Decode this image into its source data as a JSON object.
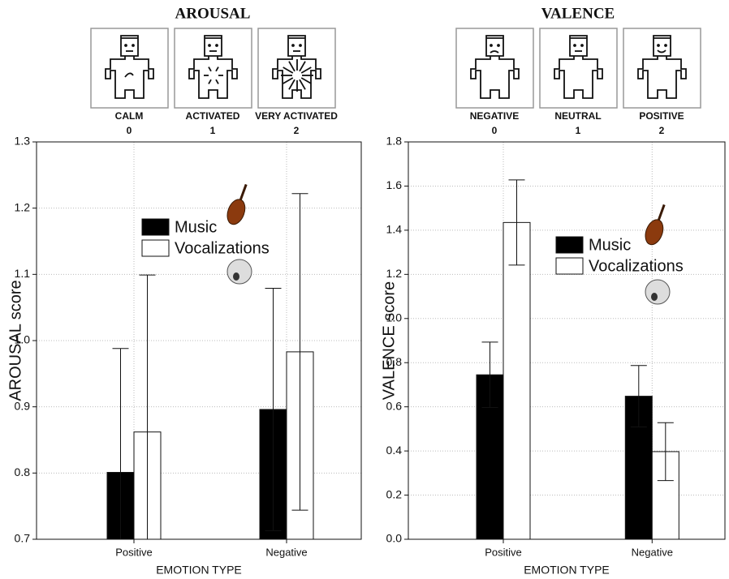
{
  "chart_data": [
    {
      "type": "bar",
      "title": "AROUSAL",
      "scale": [
        {
          "label": "CALM",
          "value": 0
        },
        {
          "label": "ACTIVATED",
          "value": 1
        },
        {
          "label": "VERY ACTIVATED",
          "value": 2
        }
      ],
      "y_label": "AROUSAL score",
      "x_label": "EMOTION TYPE",
      "categories": [
        "Positive",
        "Negative"
      ],
      "series": [
        {
          "name": "Music",
          "color": "#000000",
          "values": [
            0.801,
            0.896
          ],
          "errors": [
            0.187,
            0.183
          ]
        },
        {
          "name": "Vocalizations",
          "color": "#ffffff",
          "values": [
            0.862,
            0.983
          ],
          "errors": [
            0.237,
            0.239
          ]
        }
      ],
      "ylim": [
        0.7,
        1.3
      ],
      "yticks": [
        0.7,
        0.8,
        0.9,
        {
          "value": 1,
          "label": "1.0"
        },
        1.1,
        1.2,
        1.3
      ],
      "grid": true
    },
    {
      "type": "bar",
      "title": "VALENCE",
      "scale": [
        {
          "label": "NEGATIVE",
          "value": 0
        },
        {
          "label": "NEUTRAL",
          "value": 1
        },
        {
          "label": "POSITIVE",
          "value": 2
        }
      ],
      "y_label": "VALENCE score",
      "x_label": "EMOTION TYPE",
      "categories": [
        "Positive",
        "Negative"
      ],
      "series": [
        {
          "name": "Music",
          "color": "#000000",
          "values": [
            0.745,
            0.648
          ],
          "errors": [
            0.148,
            0.139
          ]
        },
        {
          "name": "Vocalizations",
          "color": "#ffffff",
          "values": [
            1.435,
            0.397
          ],
          "errors": [
            0.193,
            0.131
          ]
        }
      ],
      "ylim": [
        0,
        1.8
      ],
      "yticks": [
        {
          "value": 0,
          "label": "0.0"
        },
        0.2,
        0.4,
        0.6,
        0.8,
        {
          "value": 1,
          "label": "1.0"
        },
        1.2,
        1.4,
        1.6,
        1.8
      ],
      "grid": true
    }
  ]
}
